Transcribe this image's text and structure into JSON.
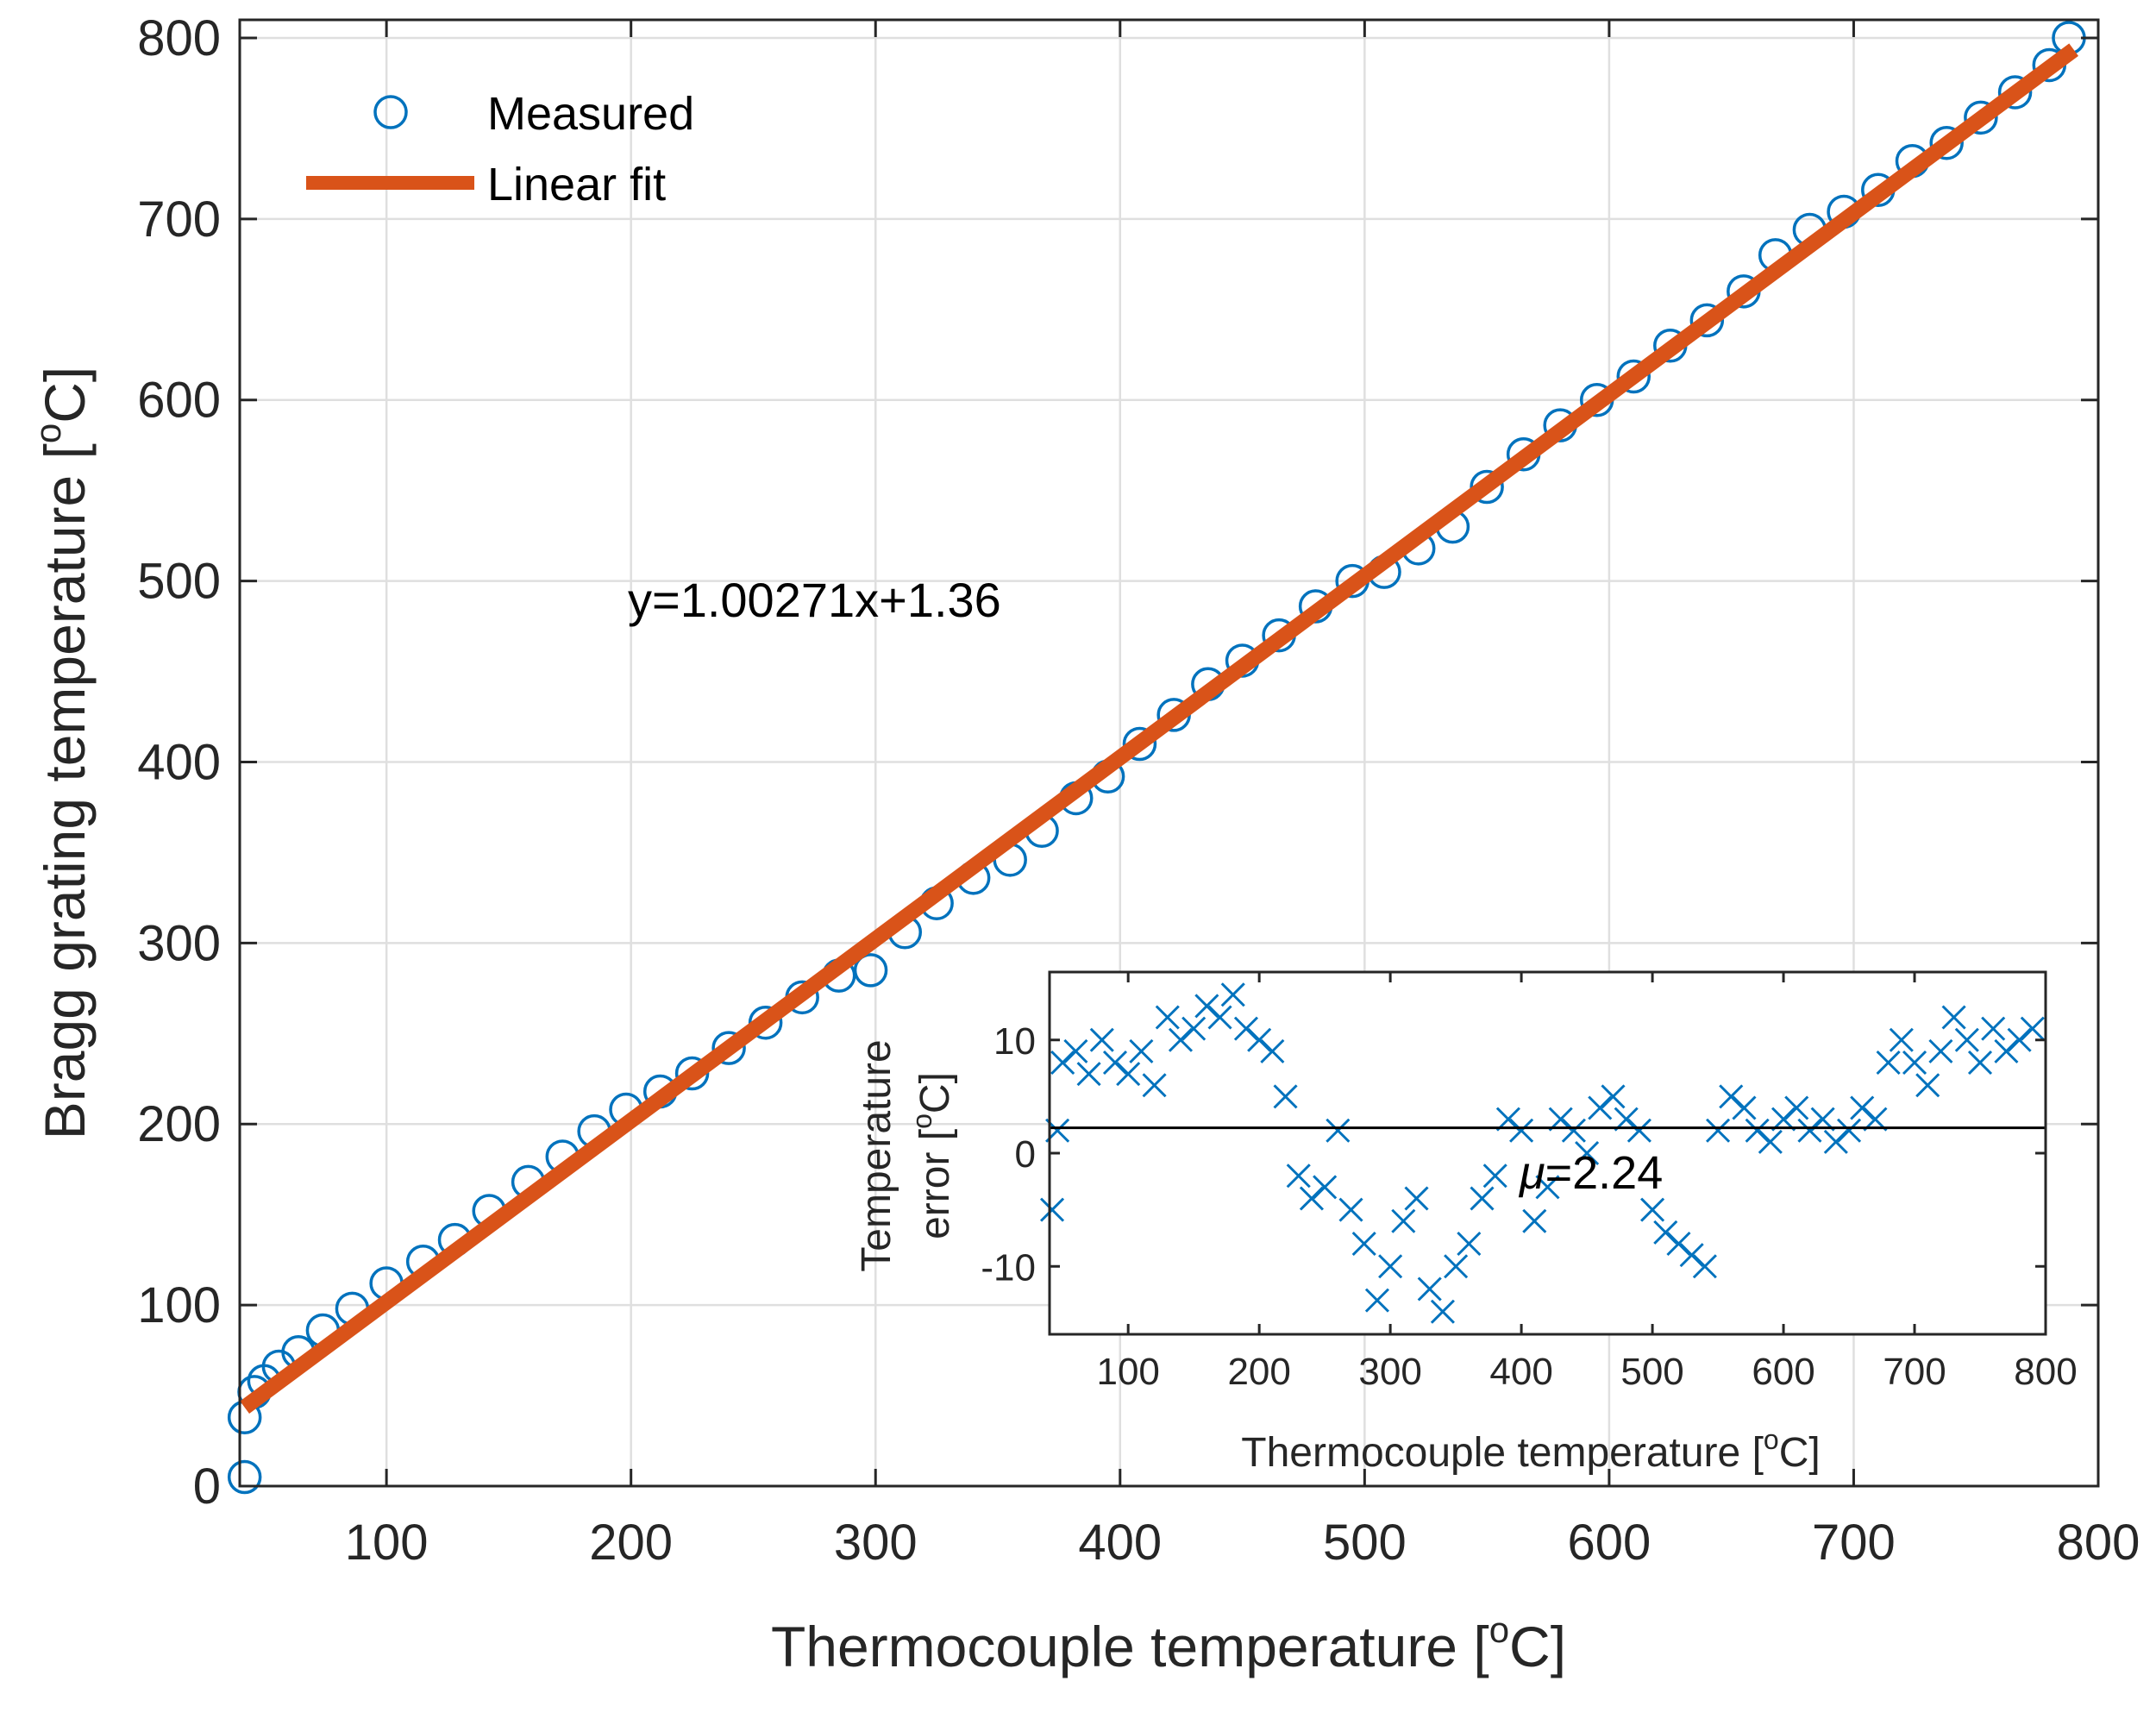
{
  "chart_data": [
    {
      "type": "scatter",
      "name": "main",
      "xlabel": "Thermocouple temperature [",
      "xlabel_sup": "o",
      "xlabel_end": "C]",
      "ylabel": "Bragg grating temperature [",
      "ylabel_sup": "o",
      "ylabel_end": "C]",
      "xlim": [
        40,
        800
      ],
      "ylim": [
        0,
        810
      ],
      "xticks": [
        100,
        200,
        300,
        400,
        500,
        600,
        700,
        800
      ],
      "yticks": [
        0,
        100,
        200,
        300,
        400,
        500,
        600,
        700,
        800
      ],
      "grid": true,
      "legend": {
        "position": "top-left",
        "entries": [
          {
            "label": "Measured",
            "marker": "circle",
            "color": "#0072bd"
          },
          {
            "label": "Linear fit",
            "marker": "line",
            "color": "#d95319"
          }
        ]
      },
      "series": [
        {
          "name": "Measured",
          "marker": "circle",
          "color": "#0072bd",
          "x": [
            42,
            42,
            46,
            50,
            56,
            64,
            74,
            86,
            100,
            115,
            128,
            142,
            158,
            172,
            185,
            198,
            212,
            225,
            240,
            255,
            270,
            285,
            298,
            312,
            325,
            340,
            355,
            368,
            382,
            395,
            408,
            422,
            436,
            450,
            465,
            480,
            495,
            508,
            522,
            536,
            550,
            565,
            580,
            595,
            610,
            625,
            640,
            655,
            668,
            682,
            696,
            710,
            724,
            738,
            752,
            766,
            780,
            788
          ],
          "y": [
            5,
            38,
            52,
            58,
            66,
            74,
            86,
            98,
            112,
            124,
            136,
            152,
            168,
            182,
            196,
            208,
            218,
            228,
            242,
            256,
            270,
            282,
            285,
            306,
            322,
            336,
            346,
            362,
            380,
            392,
            410,
            426,
            443,
            456,
            470,
            486,
            500,
            505,
            518,
            530,
            552,
            570,
            586,
            600,
            613,
            630,
            644,
            660,
            680,
            694,
            704,
            716,
            732,
            742,
            756,
            770,
            785,
            800
          ]
        },
        {
          "name": "Linear fit",
          "type": "line",
          "color": "#d95319",
          "slope": 1.00271,
          "intercept": 1.36,
          "x_range": [
            42,
            790
          ]
        }
      ],
      "annotations": [
        {
          "text": "y=1.00271x+1.36",
          "x": 200,
          "y": 490
        }
      ]
    },
    {
      "type": "scatter",
      "name": "inset",
      "xlabel": "Thermocouple temperature [",
      "xlabel_sup": "o",
      "xlabel_end": "C]",
      "ylabel_line1": "Temperature",
      "ylabel_line2": "error [",
      "ylabel_sup": "o",
      "ylabel_end": "C]",
      "xlim": [
        40,
        800
      ],
      "ylim": [
        -16,
        16
      ],
      "xticks": [
        100,
        200,
        300,
        400,
        500,
        600,
        700,
        800
      ],
      "yticks": [
        10,
        0,
        -10
      ],
      "grid": false,
      "mean_line": 2.24,
      "series": [
        {
          "name": "error",
          "marker": "x",
          "color": "#0072bd",
          "x": [
            42,
            46,
            50,
            60,
            70,
            80,
            90,
            100,
            110,
            120,
            130,
            140,
            150,
            160,
            170,
            180,
            190,
            200,
            210,
            220,
            230,
            240,
            250,
            260,
            270,
            280,
            290,
            300,
            310,
            320,
            330,
            340,
            350,
            360,
            370,
            380,
            390,
            400,
            410,
            420,
            430,
            440,
            450,
            460,
            470,
            480,
            490,
            500,
            510,
            520,
            530,
            540,
            550,
            560,
            570,
            580,
            590,
            600,
            610,
            620,
            630,
            640,
            650,
            660,
            670,
            680,
            690,
            700,
            710,
            720,
            730,
            740,
            750,
            760,
            770,
            780,
            790
          ],
          "y": [
            -5,
            2,
            8,
            9,
            7,
            10,
            8,
            7,
            9,
            6,
            12,
            10,
            11,
            13,
            12,
            14,
            11,
            10,
            9,
            5,
            -2,
            -4,
            -3,
            2,
            -5,
            -8,
            -13,
            -10,
            -6,
            -4,
            -12,
            -14,
            -10,
            -8,
            -4,
            -2,
            3,
            2,
            -6,
            -3,
            3,
            2,
            0,
            4,
            5,
            3,
            2,
            -5,
            -7,
            -8,
            -9,
            -10,
            2,
            5,
            4,
            2,
            1,
            3,
            4,
            2,
            3,
            1,
            2,
            4,
            3,
            8,
            10,
            8,
            6,
            9,
            12,
            10,
            8,
            11,
            9,
            10,
            11
          ]
        }
      ],
      "annotations": [
        {
          "text": "=2.24",
          "prefix_symbol": "μ",
          "x": 410,
          "y": 1
        }
      ]
    }
  ]
}
